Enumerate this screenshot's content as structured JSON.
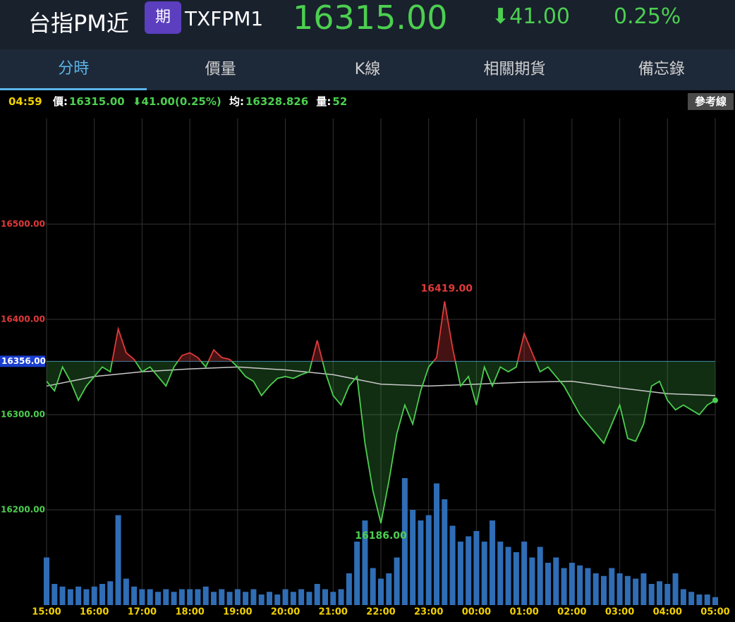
{
  "header": {
    "name": "台指PM近",
    "badge": "期",
    "code": "TXFPM1",
    "price": "16315.00",
    "change": "⬇41.00",
    "percent": "0.25%"
  },
  "tabs": [
    "分時",
    "價量",
    "K線",
    "相關期貨",
    "備忘錄"
  ],
  "info": {
    "time": "04:59",
    "price_label": "價:",
    "price": "16315.00",
    "change": "⬇41.00(0.25%)",
    "avg_label": "均:",
    "avg": "16328.826",
    "vol_label": "量:",
    "vol": "52",
    "button": "參考線"
  },
  "chart_data": {
    "type": "intraday",
    "xlim": [
      0,
      840
    ],
    "xticks": [
      {
        "value": 0,
        "label": "15:00"
      },
      {
        "value": 60,
        "label": "16:00"
      },
      {
        "value": 120,
        "label": "17:00"
      },
      {
        "value": 180,
        "label": "18:00"
      },
      {
        "value": 240,
        "label": "19:00"
      },
      {
        "value": 300,
        "label": "20:00"
      },
      {
        "value": 360,
        "label": "21:00"
      },
      {
        "value": 420,
        "label": "22:00"
      },
      {
        "value": 480,
        "label": "23:00"
      },
      {
        "value": 540,
        "label": "00:00"
      },
      {
        "value": 600,
        "label": "01:00"
      },
      {
        "value": 660,
        "label": "02:00"
      },
      {
        "value": 720,
        "label": "03:00"
      },
      {
        "value": 780,
        "label": "04:00"
      },
      {
        "value": 840,
        "label": "05:00"
      }
    ],
    "ylim": [
      16100,
      16611
    ],
    "yticks": [
      {
        "value": 16500,
        "label": "16500.00"
      },
      {
        "value": 16400,
        "label": "16400.00"
      },
      {
        "value": 16300,
        "label": "16300.00"
      },
      {
        "value": 16200,
        "label": "16200.00"
      }
    ],
    "reference": {
      "value": 16356,
      "label": "16356.00"
    },
    "grid": true,
    "up_color": "#e03a3a",
    "down_color": "#4ccf50",
    "avg_color": "#c8c8c8",
    "volume_color": "#2f6db5",
    "x": [
      0,
      10,
      20,
      30,
      40,
      50,
      60,
      70,
      80,
      90,
      100,
      110,
      120,
      130,
      140,
      150,
      160,
      170,
      180,
      190,
      200,
      210,
      220,
      230,
      240,
      250,
      260,
      270,
      280,
      290,
      300,
      310,
      320,
      330,
      340,
      350,
      360,
      370,
      380,
      390,
      400,
      410,
      420,
      430,
      440,
      450,
      460,
      470,
      480,
      490,
      500,
      510,
      520,
      530,
      540,
      550,
      560,
      570,
      580,
      590,
      600,
      610,
      620,
      630,
      640,
      650,
      660,
      670,
      680,
      690,
      700,
      710,
      720,
      730,
      740,
      750,
      760,
      770,
      780,
      790,
      800,
      810,
      820,
      830,
      840
    ],
    "price": [
      16335,
      16325,
      16350,
      16335,
      16315,
      16330,
      16340,
      16350,
      16345,
      16390,
      16365,
      16358,
      16345,
      16350,
      16340,
      16330,
      16350,
      16362,
      16365,
      16360,
      16350,
      16368,
      16360,
      16358,
      16350,
      16340,
      16335,
      16320,
      16330,
      16338,
      16340,
      16338,
      16342,
      16345,
      16378,
      16345,
      16320,
      16310,
      16330,
      16340,
      16270,
      16220,
      16186,
      16230,
      16280,
      16310,
      16290,
      16325,
      16350,
      16360,
      16419,
      16370,
      16330,
      16340,
      16310,
      16350,
      16330,
      16350,
      16345,
      16350,
      16385,
      16365,
      16345,
      16350,
      16340,
      16330,
      16315,
      16300,
      16290,
      16280,
      16270,
      16290,
      16310,
      16275,
      16272,
      16290,
      16330,
      16335,
      16315,
      16305,
      16310,
      16305,
      16300,
      16310,
      16315
    ],
    "volume": [
      90,
      40,
      35,
      30,
      35,
      30,
      35,
      40,
      45,
      170,
      50,
      35,
      30,
      30,
      25,
      30,
      25,
      30,
      30,
      30,
      35,
      25,
      30,
      25,
      30,
      25,
      30,
      20,
      25,
      20,
      30,
      25,
      30,
      25,
      40,
      30,
      25,
      30,
      60,
      120,
      160,
      70,
      50,
      60,
      90,
      240,
      180,
      160,
      170,
      230,
      200,
      150,
      120,
      130,
      140,
      120,
      160,
      120,
      110,
      100,
      120,
      90,
      110,
      80,
      90,
      70,
      80,
      75,
      70,
      60,
      55,
      70,
      60,
      55,
      50,
      60,
      40,
      45,
      40,
      60,
      30,
      25,
      20,
      20,
      15
    ],
    "average": {
      "x": [
        0,
        60,
        120,
        180,
        240,
        300,
        360,
        420,
        480,
        540,
        600,
        660,
        720,
        780,
        840
      ],
      "values": [
        16330,
        16340,
        16345,
        16348,
        16350,
        16347,
        16342,
        16332,
        16330,
        16332,
        16334,
        16335,
        16328,
        16322,
        16320
      ]
    },
    "annotations": [
      {
        "x": 500,
        "value": 16419,
        "label": "16419.00"
      },
      {
        "x": 420,
        "value": 16186,
        "label": "16186.00"
      }
    ]
  }
}
